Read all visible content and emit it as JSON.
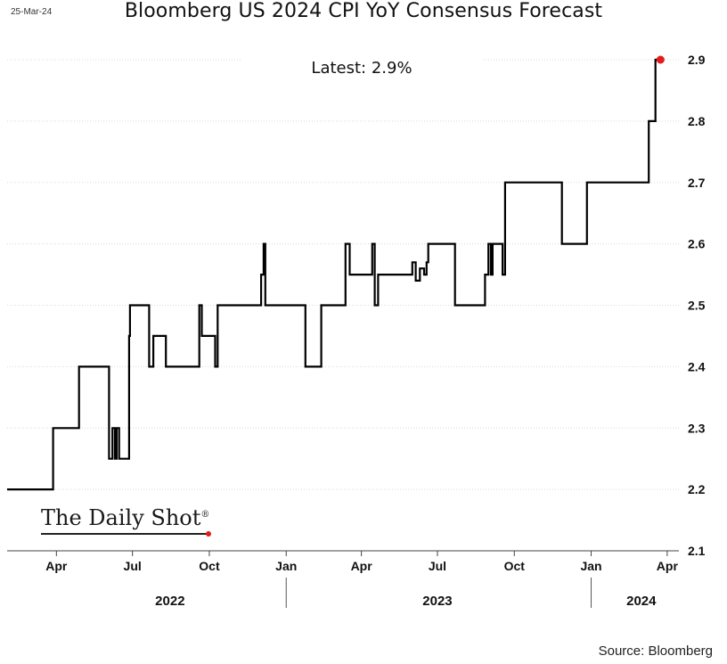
{
  "header": {
    "date_stamp": "25-Mar-24",
    "title": "Bloomberg US 2024 CPI YoY Consensus Forecast"
  },
  "footer": {
    "source": "Source: Bloomberg"
  },
  "logo": {
    "text": "The Daily Shot",
    "mark": "®"
  },
  "colors": {
    "line": "#000000",
    "marker": "#e41a1c",
    "grid": "#d9d9d9"
  },
  "chart_data": {
    "type": "line",
    "title": "Bloomberg US 2024 CPI YoY Consensus Forecast",
    "annotation": "Latest:  2.9%",
    "ylim": [
      2.1,
      2.9
    ],
    "y_ticks": [
      "2.1",
      "2.2",
      "2.3",
      "2.4",
      "2.5",
      "2.6",
      "2.7",
      "2.8",
      "2.9"
    ],
    "y_axis_side": "right",
    "x_range": [
      "2022-02-01",
      "2024-04-15"
    ],
    "x_ticks": [
      {
        "date": "2022-04-01",
        "label": "Apr"
      },
      {
        "date": "2022-07-01",
        "label": "Jul"
      },
      {
        "date": "2022-10-01",
        "label": "Oct"
      },
      {
        "date": "2023-01-01",
        "label": "Jan"
      },
      {
        "date": "2023-04-01",
        "label": "Apr"
      },
      {
        "date": "2023-07-01",
        "label": "Jul"
      },
      {
        "date": "2023-10-01",
        "label": "Oct"
      },
      {
        "date": "2024-01-01",
        "label": "Jan"
      },
      {
        "date": "2024-04-01",
        "label": "Apr"
      }
    ],
    "year_labels": [
      {
        "date": "2022-08-15",
        "label": "2022"
      },
      {
        "date": "2023-07-01",
        "label": "2023"
      },
      {
        "date": "2024-03-01",
        "label": "2024"
      }
    ],
    "year_separators": [
      "2023-01-01",
      "2024-01-01"
    ],
    "grid": true,
    "series": [
      {
        "step": true,
        "x": [
          "2022-02-01",
          "2022-03-28",
          "2022-04-28",
          "2022-06-03",
          "2022-06-07",
          "2022-06-10",
          "2022-06-12",
          "2022-06-15",
          "2022-06-17",
          "2022-06-27",
          "2022-06-28",
          "2022-07-01",
          "2022-07-21",
          "2022-07-26",
          "2022-08-03",
          "2022-08-10",
          "2022-09-17",
          "2022-09-19",
          "2022-09-22",
          "2022-10-03",
          "2022-10-08",
          "2022-10-11",
          "2022-10-22",
          "2022-12-02",
          "2022-12-05",
          "2022-12-07",
          "2023-01-17",
          "2023-01-24",
          "2023-02-12",
          "2023-03-10",
          "2023-03-13",
          "2023-03-18",
          "2023-04-14",
          "2023-04-17",
          "2023-04-21",
          "2023-06-01",
          "2023-06-05",
          "2023-06-10",
          "2023-06-15",
          "2023-06-18",
          "2023-06-20",
          "2023-07-01",
          "2023-07-22",
          "2023-08-27",
          "2023-08-31",
          "2023-09-03",
          "2023-09-05",
          "2023-09-12",
          "2023-09-17",
          "2023-09-20",
          "2023-09-23",
          "2023-11-27",
          "2023-12-27",
          "2024-01-27",
          "2024-03-10",
          "2024-03-18",
          "2024-03-24"
        ],
        "y": [
          2.2,
          2.3,
          2.4,
          2.25,
          2.3,
          2.25,
          2.3,
          2.25,
          2.25,
          2.45,
          2.5,
          2.5,
          2.4,
          2.45,
          2.45,
          2.4,
          2.4,
          2.5,
          2.45,
          2.45,
          2.4,
          2.5,
          2.5,
          2.55,
          2.6,
          2.5,
          2.5,
          2.4,
          2.5,
          2.5,
          2.6,
          2.55,
          2.6,
          2.5,
          2.55,
          2.57,
          2.54,
          2.56,
          2.55,
          2.57,
          2.6,
          2.6,
          2.5,
          2.55,
          2.6,
          2.55,
          2.6,
          2.6,
          2.55,
          2.7,
          2.7,
          2.6,
          2.7,
          2.7,
          2.8,
          2.9,
          2.9
        ]
      }
    ],
    "latest_marker": {
      "date": "2024-03-24",
      "value": 2.9
    }
  }
}
